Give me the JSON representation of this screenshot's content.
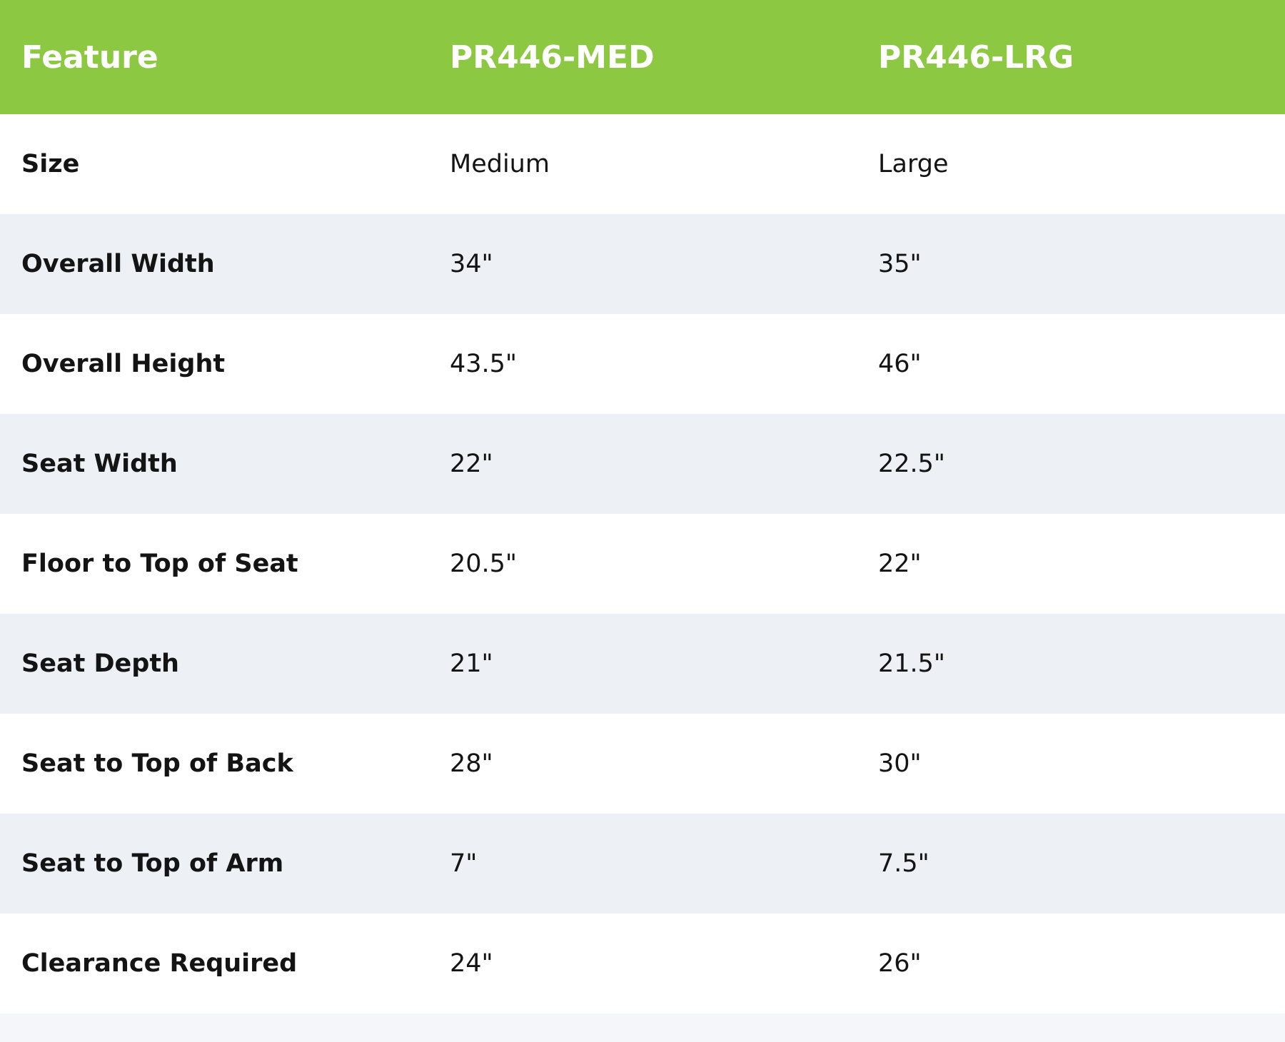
{
  "colors": {
    "header_bg": "#8dc842",
    "row_alt_bg": "#edf0f5"
  },
  "table": {
    "headers": [
      "Feature",
      "PR446-MED",
      "PR446-LRG"
    ],
    "rows": [
      [
        "Size",
        "Medium",
        "Large"
      ],
      [
        "Overall Width",
        "34\"",
        "35\""
      ],
      [
        "Overall Height",
        "43.5\"",
        "46\""
      ],
      [
        "Seat Width",
        "22\"",
        "22.5\""
      ],
      [
        "Floor to Top of Seat",
        "20.5\"",
        "22\""
      ],
      [
        "Seat Depth",
        "21\"",
        "21.5\""
      ],
      [
        "Seat to Top of Back",
        "28\"",
        "30\""
      ],
      [
        "Seat to Top of Arm",
        "7\"",
        "7.5\""
      ],
      [
        "Clearance Required",
        "24\"",
        "26\""
      ]
    ]
  }
}
